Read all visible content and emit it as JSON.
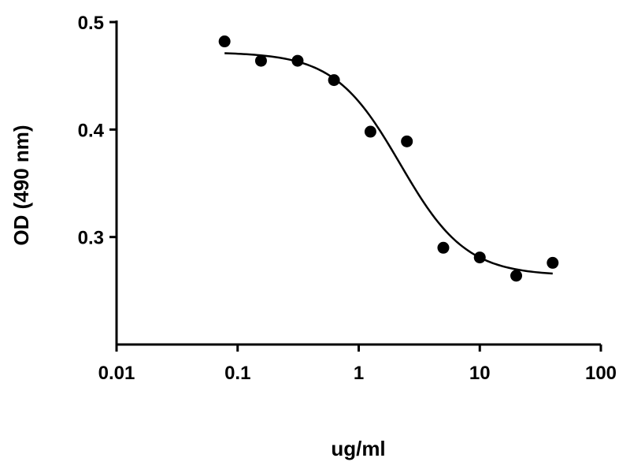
{
  "chart_data": {
    "type": "scatter",
    "title": "",
    "xlabel": "ug/ml",
    "ylabel": "OD (490 nm)",
    "x_scale": "log",
    "xlim": [
      0.01,
      100
    ],
    "ylim": [
      0.2,
      0.5
    ],
    "x_ticks": [
      0.01,
      0.1,
      1,
      10,
      100
    ],
    "x_tick_labels": [
      "0.01",
      "0.1",
      "1",
      "10",
      "100"
    ],
    "y_ticks": [
      0.3,
      0.4,
      0.5
    ],
    "y_tick_labels": [
      "0.3",
      "0.4",
      "0.5"
    ],
    "grid": false,
    "series": [
      {
        "points": [
          {
            "x": 0.078,
            "y": 0.482
          },
          {
            "x": 0.156,
            "y": 0.464
          },
          {
            "x": 0.313,
            "y": 0.464
          },
          {
            "x": 0.625,
            "y": 0.446
          },
          {
            "x": 1.25,
            "y": 0.398
          },
          {
            "x": 2.5,
            "y": 0.389
          },
          {
            "x": 5,
            "y": 0.29
          },
          {
            "x": 10,
            "y": 0.281
          },
          {
            "x": 20,
            "y": 0.264
          },
          {
            "x": 40,
            "y": 0.276
          }
        ],
        "fit": {
          "model": "four-parameter logistic",
          "top": 0.472,
          "bottom": 0.264,
          "ec50": 2.2,
          "hill": 1.6,
          "x_range": [
            0.078,
            40
          ]
        }
      }
    ]
  }
}
